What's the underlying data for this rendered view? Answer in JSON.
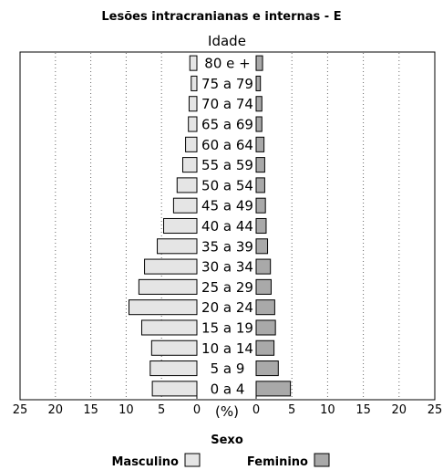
{
  "chart_data": {
    "type": "bar",
    "orientation": "horizontal",
    "subtype": "population-pyramid",
    "title": "Lesões intracranianas e internas - E",
    "category_axis_label": "Idade",
    "value_axis_label": "(%)",
    "legend_title": "Sexo",
    "categories": [
      "0 a 4",
      "5 a 9",
      "10 a 14",
      "15 a 19",
      "20 a 24",
      "25 a 29",
      "30 a 34",
      "35 a 39",
      "40 a 44",
      "45 a 49",
      "50 a 54",
      "55 a 59",
      "60 a 64",
      "65 a 69",
      "70 a 74",
      "75 a 79",
      "80 e +"
    ],
    "series": [
      {
        "name": "Masculino",
        "side": "left",
        "color": "#e5e5e5",
        "values": [
          6.3,
          6.6,
          6.4,
          7.8,
          9.6,
          8.2,
          7.4,
          5.6,
          4.7,
          3.3,
          2.8,
          2.0,
          1.6,
          1.2,
          1.1,
          0.8,
          1.0
        ]
      },
      {
        "name": "Feminino",
        "side": "right",
        "color": "#a9a9a9",
        "values": [
          4.8,
          3.1,
          2.5,
          2.7,
          2.6,
          2.1,
          2.0,
          1.6,
          1.4,
          1.3,
          1.2,
          1.2,
          1.1,
          0.8,
          0.8,
          0.6,
          0.9
        ]
      }
    ],
    "left_ticks": [
      "25",
      "20",
      "15",
      "10",
      "5",
      "0"
    ],
    "right_ticks": [
      "0",
      "5",
      "10",
      "15",
      "20",
      "25"
    ],
    "xlim": [
      0,
      25
    ],
    "grid": "vertical dotted"
  }
}
